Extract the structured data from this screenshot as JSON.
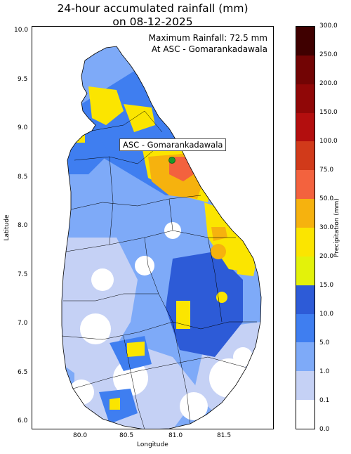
{
  "title_line1": "24-hour accumulated rainfall (mm)",
  "title_line2": "on 08-12-2025",
  "annotation_line1": "Maximum Rainfall: 72.5 mm",
  "annotation_line2": "At ASC - Gomarankadawala",
  "station_label": "ASC - Gomarankadawala",
  "xlabel": "Longitude",
  "ylabel": "Latitude",
  "colorbar_label": "Precipitation (mm)",
  "chart_data": {
    "type": "heatmap",
    "x_ticks": [
      "80.0",
      "80.5",
      "81.0",
      "81.5"
    ],
    "y_ticks": [
      "6.0",
      "6.5",
      "7.0",
      "7.5",
      "8.0",
      "8.5",
      "9.0",
      "9.5",
      "10.0"
    ],
    "xlim": [
      79.5,
      82.0
    ],
    "ylim": [
      5.9,
      10.05
    ],
    "max_station": {
      "name": "ASC - Gomarankadawala",
      "lon": 80.96,
      "lat": 8.68,
      "value": 72.5
    },
    "colorbar": {
      "levels": [
        "0.0",
        "0.1",
        "1.0",
        "5.0",
        "10.0",
        "15.0",
        "20.0",
        "30.0",
        "50.0",
        "75.0",
        "100.0",
        "150.0",
        "200.0",
        "250.0",
        "300.0"
      ],
      "colors": [
        "#ffffff",
        "#c5d1f5",
        "#7eaaf8",
        "#3f7ef0",
        "#2d5bd7",
        "#e3f20a",
        "#fbe500",
        "#f6b20e",
        "#f3623e",
        "#d13a1a",
        "#b30e0e",
        "#900707",
        "#720404",
        "#3f0000"
      ]
    }
  }
}
